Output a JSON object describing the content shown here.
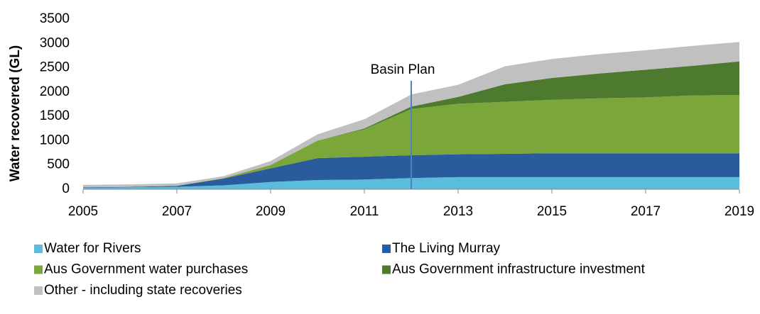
{
  "chart_data": {
    "type": "stacked-area",
    "ylabel": "Water recovered (GL)",
    "x": [
      2005,
      2006,
      2007,
      2008,
      2009,
      2010,
      2011,
      2012,
      2013,
      2014,
      2015,
      2016,
      2017,
      2018,
      2019
    ],
    "xlim": [
      2005,
      2019
    ],
    "xticks": [
      2005,
      2007,
      2009,
      2011,
      2013,
      2015,
      2017,
      2019
    ],
    "ylim": [
      0,
      3500
    ],
    "yticks": [
      0,
      500,
      1000,
      1500,
      2000,
      2500,
      3000,
      3500
    ],
    "legend": "bottom",
    "series": [
      {
        "name": "Water for Rivers",
        "color": "#5bbcdc",
        "values": [
          30,
          40,
          50,
          80,
          150,
          190,
          200,
          230,
          250,
          250,
          250,
          250,
          250,
          250,
          250
        ]
      },
      {
        "name": "The Living Murray",
        "color": "#2a5b9c",
        "values": [
          10,
          10,
          20,
          140,
          280,
          450,
          470,
          470,
          470,
          480,
          490,
          490,
          490,
          490,
          490
        ]
      },
      {
        "name": "Aus Government water purchases",
        "color": "#7aa63a",
        "values": [
          0,
          0,
          0,
          10,
          70,
          360,
          560,
          950,
          1040,
          1070,
          1100,
          1130,
          1150,
          1190,
          1200
        ]
      },
      {
        "name": "Aus Government infrastructure investment",
        "color": "#4e7a2f",
        "values": [
          0,
          0,
          0,
          0,
          0,
          0,
          20,
          50,
          140,
          360,
          450,
          510,
          570,
          610,
          690
        ]
      },
      {
        "name": "Other - including state recoveries",
        "color": "#c0c0c0",
        "values": [
          50,
          50,
          50,
          40,
          80,
          130,
          190,
          250,
          250,
          370,
          390,
          400,
          400,
          410,
          400
        ]
      }
    ],
    "annotations": [
      {
        "text": "Basin Plan",
        "x": 2012
      }
    ]
  }
}
